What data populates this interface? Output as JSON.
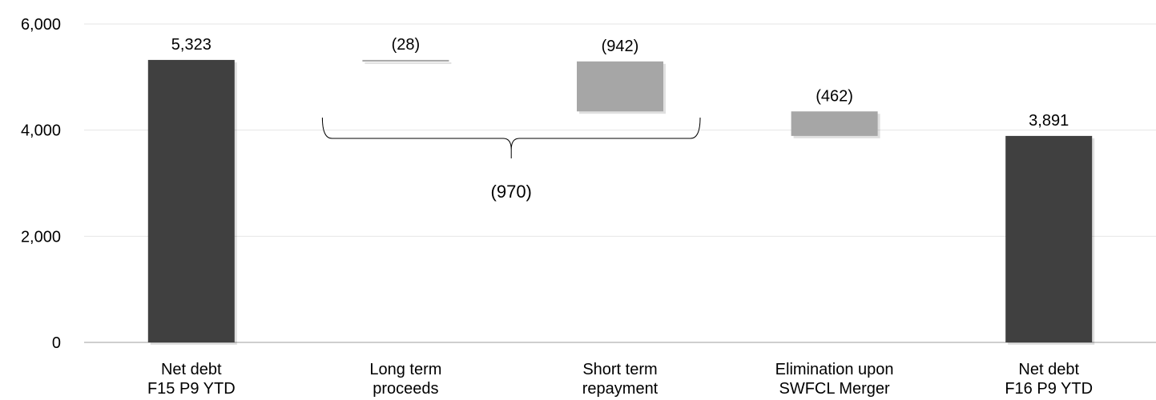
{
  "chart_data": {
    "type": "bar",
    "subtype": "waterfall",
    "title": "",
    "xlabel": "",
    "ylabel": "",
    "ylim": [
      0,
      6000
    ],
    "yticks": [
      0,
      2000,
      4000,
      6000
    ],
    "ytick_labels": [
      "0",
      "2,000",
      "4,000",
      "6,000"
    ],
    "grid": true,
    "categories": [
      [
        "Net debt",
        "F15 P9 YTD"
      ],
      [
        "Long term",
        "proceeds"
      ],
      [
        "Short term",
        "repayment"
      ],
      [
        "Elimination upon",
        "SWFCL Merger"
      ],
      [
        "Net debt",
        "F16 P9 YTD"
      ]
    ],
    "bars": [
      {
        "kind": "total",
        "start": 0,
        "end": 5323,
        "label": "5,323"
      },
      {
        "kind": "change",
        "start": 5323,
        "end": 5295,
        "label": "(28)"
      },
      {
        "kind": "change",
        "start": 5295,
        "end": 4353,
        "label": "(942)"
      },
      {
        "kind": "change",
        "start": 4353,
        "end": 3891,
        "label": "(462)"
      },
      {
        "kind": "total",
        "start": 0,
        "end": 3891,
        "label": "3,891"
      }
    ],
    "bracket": {
      "from_category": 1,
      "to_category": 2,
      "label": "(970)"
    },
    "colors": {
      "total": "#404040",
      "change": "#a6a6a6",
      "grid": "#e6e6e6",
      "axis": "#bfbfbf"
    }
  }
}
